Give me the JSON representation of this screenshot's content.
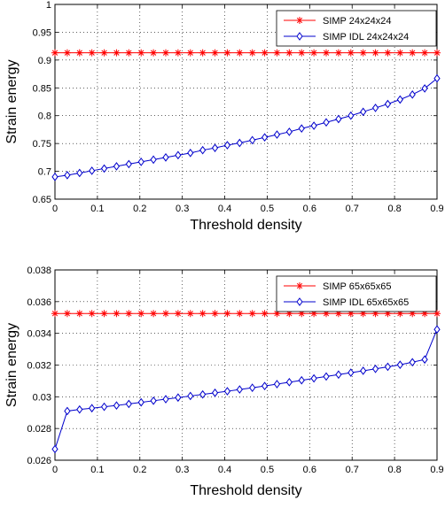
{
  "chart_data": [
    {
      "type": "line",
      "xlabel": "Threshold density",
      "ylabel": "Strain energy",
      "xlim": [
        0,
        0.9
      ],
      "ylim": [
        0.65,
        1
      ],
      "xticks": [
        "0",
        "0.1",
        "0.2",
        "0.3",
        "0.4",
        "0.5",
        "0.6",
        "0.7",
        "0.8",
        "0.9"
      ],
      "yticks": [
        "0.65",
        "0.7",
        "0.75",
        "0.8",
        "0.85",
        "0.9",
        "0.95",
        "1"
      ],
      "grid": true,
      "legend_position": "top-right",
      "series": [
        {
          "name": "SIMP 24x24x24",
          "color": "#ff0000",
          "marker": "asterisk",
          "x": [
            0,
            0.029,
            0.058,
            0.087,
            0.116,
            0.145,
            0.174,
            0.203,
            0.232,
            0.261,
            0.29,
            0.319,
            0.348,
            0.377,
            0.406,
            0.435,
            0.465,
            0.494,
            0.523,
            0.552,
            0.581,
            0.61,
            0.639,
            0.668,
            0.697,
            0.726,
            0.755,
            0.784,
            0.813,
            0.842,
            0.871,
            0.9
          ],
          "y": [
            0.913,
            0.913,
            0.913,
            0.913,
            0.913,
            0.913,
            0.913,
            0.913,
            0.913,
            0.913,
            0.913,
            0.913,
            0.913,
            0.913,
            0.913,
            0.913,
            0.913,
            0.913,
            0.913,
            0.913,
            0.913,
            0.913,
            0.913,
            0.913,
            0.913,
            0.913,
            0.913,
            0.913,
            0.913,
            0.913,
            0.913,
            0.913
          ]
        },
        {
          "name": "SIMP IDL 24x24x24",
          "color": "#0000cc",
          "marker": "diamond",
          "x": [
            0,
            0.029,
            0.058,
            0.087,
            0.116,
            0.145,
            0.174,
            0.203,
            0.232,
            0.261,
            0.29,
            0.319,
            0.348,
            0.377,
            0.406,
            0.435,
            0.465,
            0.494,
            0.523,
            0.552,
            0.581,
            0.61,
            0.639,
            0.668,
            0.697,
            0.726,
            0.755,
            0.784,
            0.813,
            0.842,
            0.871,
            0.9
          ],
          "y": [
            0.69,
            0.693,
            0.697,
            0.701,
            0.705,
            0.709,
            0.713,
            0.717,
            0.721,
            0.725,
            0.729,
            0.733,
            0.738,
            0.742,
            0.747,
            0.751,
            0.756,
            0.761,
            0.766,
            0.771,
            0.777,
            0.782,
            0.788,
            0.794,
            0.8,
            0.807,
            0.814,
            0.821,
            0.829,
            0.838,
            0.849,
            0.867
          ]
        }
      ]
    },
    {
      "type": "line",
      "xlabel": "Threshold density",
      "ylabel": "Strain energy",
      "xlim": [
        0,
        0.9
      ],
      "ylim": [
        0.026,
        0.038
      ],
      "xticks": [
        "0",
        "0.1",
        "0.2",
        "0.3",
        "0.4",
        "0.5",
        "0.6",
        "0.7",
        "0.8",
        "0.9"
      ],
      "yticks": [
        "0.026",
        "0.028",
        "0.03",
        "0.032",
        "0.034",
        "0.036",
        "0.038"
      ],
      "grid": true,
      "legend_position": "top-right",
      "series": [
        {
          "name": "SIMP 65x65x65",
          "color": "#ff0000",
          "marker": "asterisk",
          "x": [
            0,
            0.029,
            0.058,
            0.087,
            0.116,
            0.145,
            0.174,
            0.203,
            0.232,
            0.261,
            0.29,
            0.319,
            0.348,
            0.377,
            0.406,
            0.435,
            0.465,
            0.494,
            0.523,
            0.552,
            0.581,
            0.61,
            0.639,
            0.668,
            0.697,
            0.726,
            0.755,
            0.784,
            0.813,
            0.842,
            0.871,
            0.9
          ],
          "y": [
            0.03525,
            0.03525,
            0.03525,
            0.03525,
            0.03525,
            0.03525,
            0.03525,
            0.03525,
            0.03525,
            0.03525,
            0.03525,
            0.03525,
            0.03525,
            0.03525,
            0.03525,
            0.03525,
            0.03525,
            0.03525,
            0.03525,
            0.03525,
            0.03525,
            0.03525,
            0.03525,
            0.03525,
            0.03525,
            0.03525,
            0.03525,
            0.03525,
            0.03525,
            0.03525,
            0.03525,
            0.03525
          ]
        },
        {
          "name": "SIMP IDL 65x65x65",
          "color": "#0000cc",
          "marker": "diamond",
          "x": [
            0,
            0.029,
            0.058,
            0.087,
            0.116,
            0.145,
            0.174,
            0.203,
            0.232,
            0.261,
            0.29,
            0.319,
            0.348,
            0.377,
            0.406,
            0.435,
            0.465,
            0.494,
            0.523,
            0.552,
            0.581,
            0.61,
            0.639,
            0.668,
            0.697,
            0.726,
            0.755,
            0.784,
            0.813,
            0.842,
            0.871,
            0.9
          ],
          "y": [
            0.0267,
            0.0291,
            0.0292,
            0.02928,
            0.02937,
            0.02945,
            0.02955,
            0.02965,
            0.02975,
            0.02985,
            0.02995,
            0.03005,
            0.03015,
            0.03025,
            0.03035,
            0.03046,
            0.03057,
            0.03068,
            0.0308,
            0.03092,
            0.03104,
            0.03116,
            0.03128,
            0.0314,
            0.03152,
            0.03164,
            0.03176,
            0.03189,
            0.03202,
            0.03218,
            0.03235,
            0.03425
          ]
        }
      ]
    }
  ]
}
